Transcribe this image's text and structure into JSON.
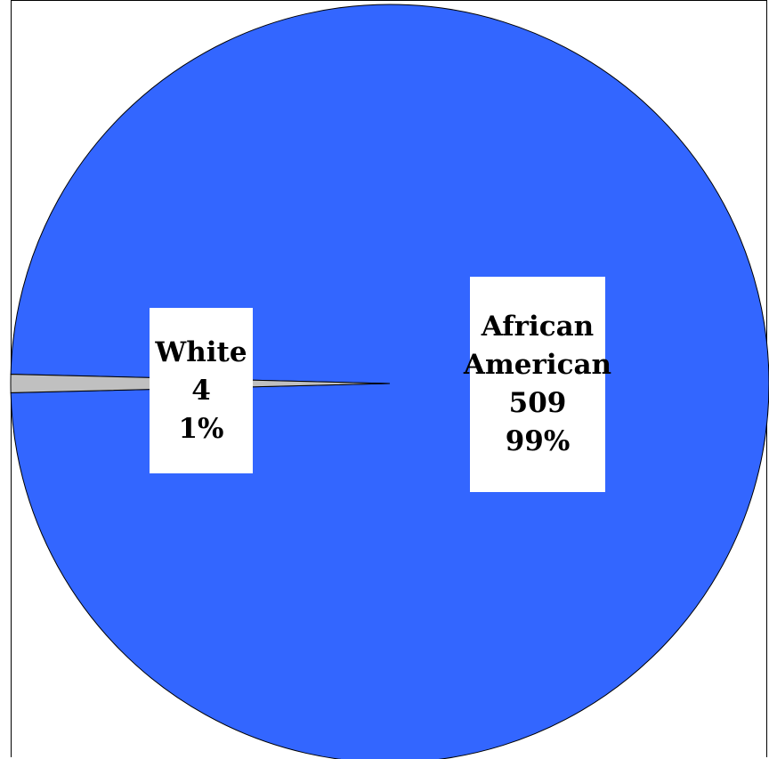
{
  "chart_data": {
    "type": "pie",
    "title": "",
    "categories": [
      "White",
      "African American"
    ],
    "values": [
      4,
      509
    ],
    "percentages": [
      "1%",
      "99%"
    ],
    "colors": [
      "#c0c0c0",
      "#3366ff"
    ],
    "labels": [
      {
        "category_line1": "White",
        "category_line2": "",
        "value": "4",
        "percent": "1%"
      },
      {
        "category_line1": "African",
        "category_line2": "American",
        "value": "509",
        "percent": "99%"
      }
    ],
    "legend": "none"
  }
}
